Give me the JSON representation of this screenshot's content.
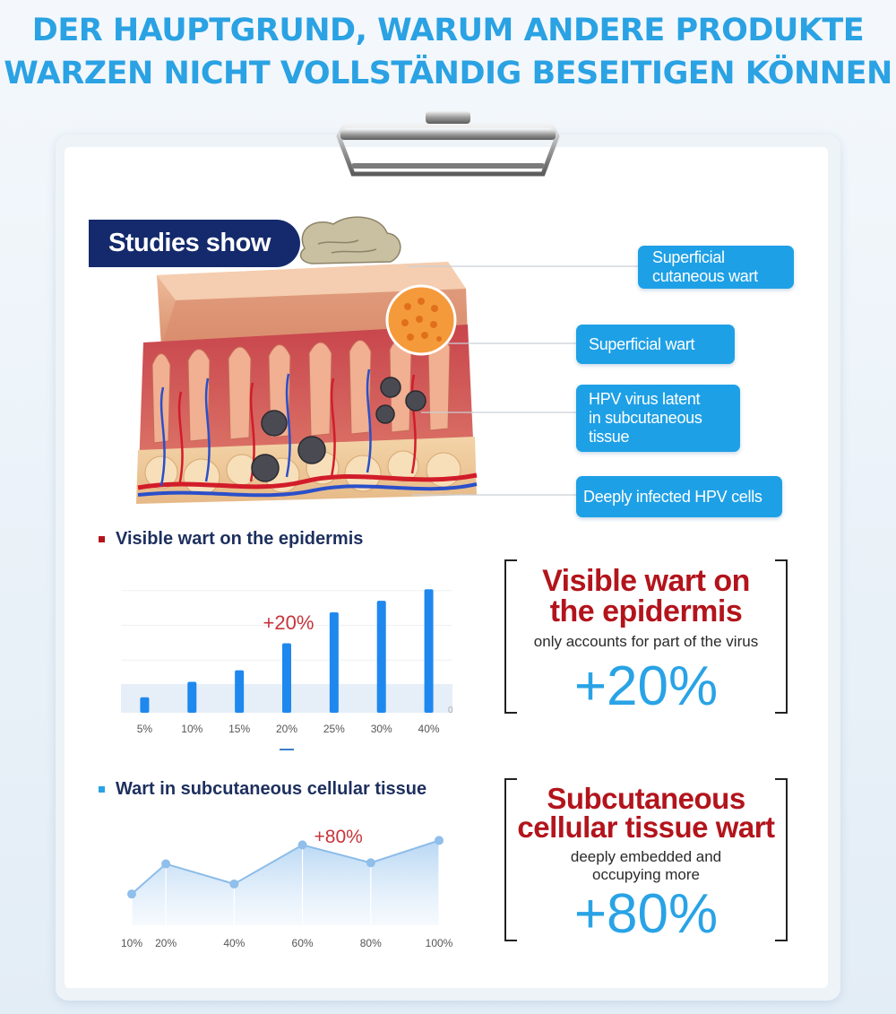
{
  "headline": {
    "line1": "DER HAUPTGRUND, WARUM ANDERE PRODUKTE",
    "line2": "WARZEN NICHT VOLLSTÄNDIG BESEITIGEN KÖNNEN"
  },
  "studies_badge": "Studies show",
  "diagram_labels": [
    {
      "line1": "Superficial",
      "line2": "cutaneous wart",
      "line3": ""
    },
    {
      "line1": "Superficial wart",
      "line2": "",
      "line3": ""
    },
    {
      "line1": "HPV virus latent",
      "line2": "in subcutaneous",
      "line3": "tissue"
    },
    {
      "line1": "Deeply infected HPV cells",
      "line2": "",
      "line3": ""
    }
  ],
  "section1": {
    "title": "Visible wart on the epidermis",
    "box_title_line1": "Visible wart on",
    "box_title_line2": "the epidermis",
    "box_sub": "only accounts for part of the virus",
    "box_percent": "+20%"
  },
  "section2": {
    "title": "Wart in subcutaneous cellular tissue",
    "box_title_line1": "Subcutaneous",
    "box_title_line2": "cellular tissue wart",
    "box_sub_line1": "deeply embedded and",
    "box_sub_line2": "occupying more",
    "box_percent": "+80%"
  },
  "colors": {
    "accent_blue": "#29a3e6",
    "navy": "#142a6c",
    "red": "#b3141c",
    "bar_blue": "#1e88ee"
  },
  "chart_data": [
    {
      "type": "bar",
      "categories": [
        "5%",
        "10%",
        "15%",
        "20%",
        "25%",
        "30%",
        "40%"
      ],
      "values": [
        2,
        4,
        5.5,
        9,
        13,
        14.5,
        16
      ],
      "ylim": [
        0,
        18
      ],
      "y_tick_label": "0",
      "annotation": "+20%",
      "grid": true
    },
    {
      "type": "area",
      "x": [
        10,
        20,
        40,
        60,
        80,
        100
      ],
      "x_tick_labels": [
        "10%",
        "20%",
        "40%",
        "60%",
        "80%",
        "100%"
      ],
      "values": [
        28,
        55,
        37,
        72,
        56,
        76
      ],
      "ylim": [
        0,
        90
      ],
      "annotation": "+80%",
      "grid": false
    }
  ]
}
